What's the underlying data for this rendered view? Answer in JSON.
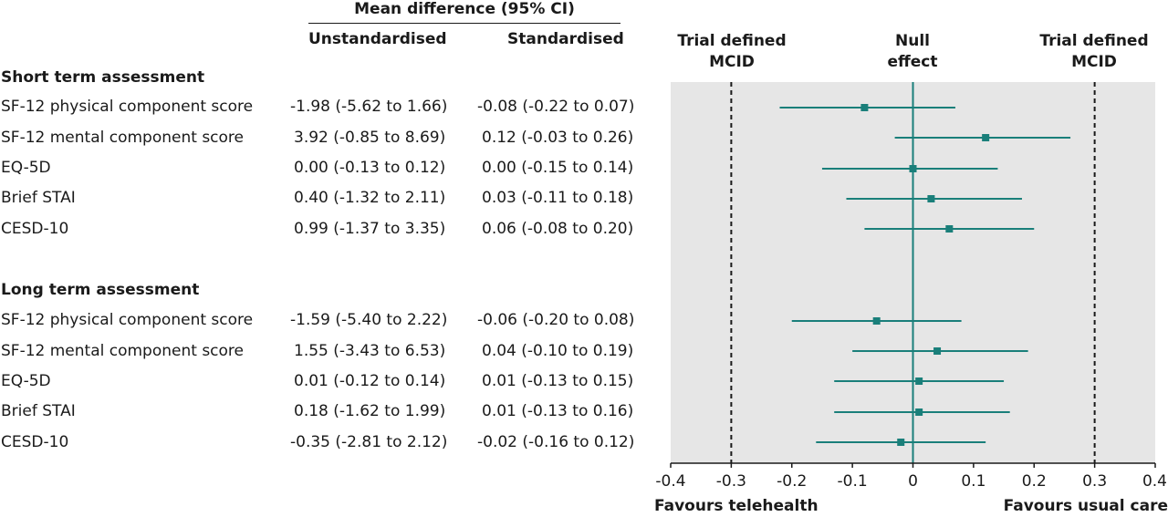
{
  "table": {
    "group_header": "Mean difference (95% CI)",
    "col_unstd": "Unstandardised",
    "col_std": "Standardised",
    "sections": [
      {
        "title": "Short term assessment",
        "rows": [
          {
            "label": "SF-12 physical component score",
            "unstd": "-1.98 (-5.62 to 1.66)",
            "std": "-0.08 (-0.22 to 0.07)"
          },
          {
            "label": "SF-12 mental component score",
            "unstd": "3.92 (-0.85 to 8.69)",
            "std": "0.12 (-0.03 to 0.26)"
          },
          {
            "label": "EQ-5D",
            "unstd": "0.00 (-0.13 to 0.12)",
            "std": "0.00 (-0.15 to 0.14)"
          },
          {
            "label": "Brief STAI",
            "unstd": "0.40 (-1.32 to 2.11)",
            "std": "0.03 (-0.11 to 0.18)"
          },
          {
            "label": "CESD-10",
            "unstd": "0.99 (-1.37 to 3.35)",
            "std": "0.06 (-0.08 to 0.20)"
          }
        ]
      },
      {
        "title": "Long term assessment",
        "rows": [
          {
            "label": "SF-12 physical component score",
            "unstd": "-1.59 (-5.40 to 2.22)",
            "std": "-0.06 (-0.20 to 0.08)"
          },
          {
            "label": "SF-12 mental component score",
            "unstd": "1.55 (-3.43 to 6.53)",
            "std": "0.04 (-0.10 to 0.19)"
          },
          {
            "label": "EQ-5D",
            "unstd": "0.01 (-0.12 to 0.14)",
            "std": "0.01 (-0.13 to 0.15)"
          },
          {
            "label": "Brief STAI",
            "unstd": "0.18 (-1.62 to 1.99)",
            "std": "0.01 (-0.13 to 0.16)"
          },
          {
            "label": "CESD-10",
            "unstd": "-0.35 (-2.81 to 2.12)",
            "std": "-0.02 (-0.16 to 0.12)"
          }
        ]
      }
    ]
  },
  "plot_headers": {
    "mcid_left": [
      "Trial defined",
      "MCID"
    ],
    "null": [
      "Null",
      "effect"
    ],
    "mcid_right": [
      "Trial defined",
      "MCID"
    ]
  },
  "footer": {
    "left": "Favours telehealth",
    "right": "Favours usual care"
  },
  "colors": {
    "marker": "#1a7f7a",
    "panel": "#e6e6e6",
    "text": "#1a1a1a"
  },
  "chart_data": {
    "type": "forest",
    "xlim": [
      -0.4,
      0.4
    ],
    "ticks": [
      -0.4,
      -0.3,
      -0.2,
      -0.1,
      0,
      0.1,
      0.2,
      0.3,
      0.4
    ],
    "tick_labels": [
      "-0.4",
      "-0.3",
      "-0.2",
      "-0.1",
      "0",
      "0.1",
      "0.2",
      "0.3",
      "0.4"
    ],
    "reference_lines": [
      {
        "x": -0.3,
        "style": "dashed"
      },
      {
        "x": 0,
        "style": "solid"
      },
      {
        "x": 0.3,
        "style": "dashed"
      }
    ],
    "grid": false,
    "series": [
      {
        "section": "Short term assessment",
        "label": "SF-12 physical component score",
        "estimate": -0.08,
        "lower": -0.22,
        "upper": 0.07
      },
      {
        "section": "Short term assessment",
        "label": "SF-12 mental component score",
        "estimate": 0.12,
        "lower": -0.03,
        "upper": 0.26
      },
      {
        "section": "Short term assessment",
        "label": "EQ-5D",
        "estimate": 0.0,
        "lower": -0.15,
        "upper": 0.14
      },
      {
        "section": "Short term assessment",
        "label": "Brief STAI",
        "estimate": 0.03,
        "lower": -0.11,
        "upper": 0.18
      },
      {
        "section": "Short term assessment",
        "label": "CESD-10",
        "estimate": 0.06,
        "lower": -0.08,
        "upper": 0.2
      },
      {
        "section": "Long term assessment",
        "label": "SF-12 physical component score",
        "estimate": -0.06,
        "lower": -0.2,
        "upper": 0.08
      },
      {
        "section": "Long term assessment",
        "label": "SF-12 mental component score",
        "estimate": 0.04,
        "lower": -0.1,
        "upper": 0.19
      },
      {
        "section": "Long term assessment",
        "label": "EQ-5D",
        "estimate": 0.01,
        "lower": -0.13,
        "upper": 0.15
      },
      {
        "section": "Long term assessment",
        "label": "Brief STAI",
        "estimate": 0.01,
        "lower": -0.13,
        "upper": 0.16
      },
      {
        "section": "Long term assessment",
        "label": "CESD-10",
        "estimate": -0.02,
        "lower": -0.16,
        "upper": 0.12
      }
    ]
  }
}
